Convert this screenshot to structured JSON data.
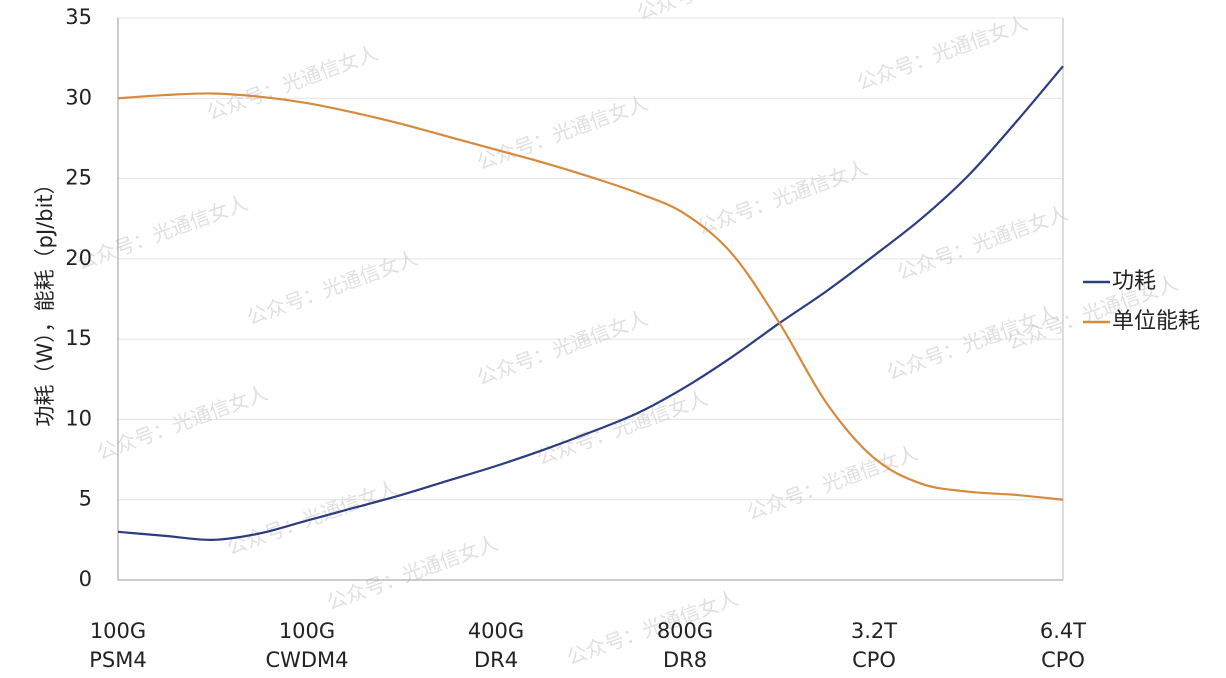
{
  "watermark_text": "公众号：光通信女人",
  "chart_data": {
    "type": "line",
    "categories": [
      "100G\nPSM4",
      "100G\nCWDM4",
      "400G\nDR4",
      "800G\nDR8",
      "3.2T\nCPO",
      "6.4T\nCPO"
    ],
    "ylabel": "功耗（W），能耗（pJ/bit）",
    "ylim": [
      0,
      35
    ],
    "yticks": [
      0,
      5,
      10,
      15,
      20,
      25,
      30,
      35
    ],
    "grid": true,
    "legend_position": "right",
    "series": [
      {
        "name": "功耗",
        "color": "#2b3d80",
        "x": [
          0,
          0.25,
          0.5,
          0.75,
          1.0,
          1.25,
          1.5,
          1.75,
          2.0,
          2.25,
          2.5,
          2.75,
          3.0,
          3.25,
          3.5,
          3.75,
          4.0,
          4.25,
          4.5,
          4.75,
          5.0
        ],
        "values": [
          3.0,
          2.75,
          2.5,
          2.9,
          3.7,
          4.5,
          5.3,
          6.2,
          7.1,
          8.1,
          9.2,
          10.4,
          12.0,
          13.9,
          16.0,
          18.0,
          20.2,
          22.5,
          25.2,
          28.5,
          32.0
        ]
      },
      {
        "name": "单位能耗",
        "color": "#d68a3c",
        "x": [
          0,
          0.25,
          0.5,
          0.75,
          1.0,
          1.25,
          1.5,
          1.75,
          2.0,
          2.25,
          2.5,
          2.75,
          3.0,
          3.25,
          3.5,
          3.75,
          4.0,
          4.25,
          4.5,
          4.75,
          5.0
        ],
        "values": [
          30.0,
          30.2,
          30.3,
          30.1,
          29.7,
          29.1,
          28.4,
          27.6,
          26.8,
          26.0,
          25.1,
          24.1,
          22.8,
          20.3,
          16.0,
          11.0,
          7.6,
          6.0,
          5.5,
          5.3,
          5.0
        ]
      }
    ]
  }
}
